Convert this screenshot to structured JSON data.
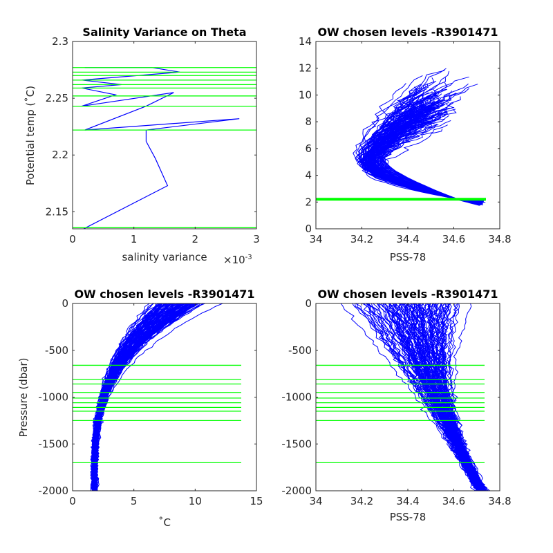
{
  "colors": {
    "profile": "#0000ff",
    "levels": "#00ff00",
    "axis": "#262626",
    "background": "#ffffff"
  },
  "chart_data": [
    {
      "type": "line",
      "title": "Salinity Variance on Theta",
      "xlabel": "salinity variance",
      "x_exponent_label": "×10",
      "x_exponent_power": "-3",
      "ylabel": "Potential temp (˚C)",
      "xlim": [
        0,
        3
      ],
      "ylim": [
        2.135,
        2.3
      ],
      "xticks": [
        0,
        1,
        2,
        3
      ],
      "yticks": [
        2.15,
        2.2,
        2.25,
        2.3
      ],
      "xtick_labels": [
        "0",
        "1",
        "2",
        "3"
      ],
      "ytick_labels": [
        "2.15",
        "2.2",
        "2.25",
        "2.3"
      ],
      "grid": false,
      "series": [
        {
          "x": [
            0.18,
            1.55,
            1.35,
            1.2,
            1.2,
            2.72,
            0.2,
            1.2,
            1.65,
            0.15,
            0.7,
            0.15,
            0.8,
            0.15,
            1.75,
            1.3,
            0.2
          ],
          "y": [
            2.135,
            2.173,
            2.197,
            2.212,
            2.222,
            2.232,
            2.222,
            2.243,
            2.255,
            2.243,
            2.253,
            2.259,
            2.262,
            2.266,
            2.273,
            2.277,
            2.277
          ]
        }
      ],
      "hlines": [
        2.222,
        2.243,
        2.252,
        2.259,
        2.262,
        2.266,
        2.27,
        2.273,
        2.277,
        2.136
      ]
    },
    {
      "type": "line",
      "title": "OW chosen levels -R3901471",
      "xlabel": "PSS-78",
      "ylabel": "",
      "xlim": [
        34,
        34.8
      ],
      "ylim": [
        0,
        14
      ],
      "xticks": [
        34,
        34.2,
        34.4,
        34.6,
        34.8
      ],
      "yticks": [
        0,
        2,
        4,
        6,
        8,
        10,
        12,
        14
      ],
      "xtick_labels": [
        "34",
        "34.2",
        "34.4",
        "34.6",
        "34.8"
      ],
      "ytick_labels": [
        "0",
        "2",
        "4",
        "6",
        "8",
        "10",
        "12",
        "14"
      ],
      "grid": false,
      "profile_family": "theta-salinity",
      "profile_count": 120,
      "hlines": [
        2.14,
        2.18,
        2.22,
        2.26,
        2.28
      ]
    },
    {
      "type": "line",
      "title": "OW chosen levels -R3901471",
      "xlabel": "˚C",
      "ylabel": "Pressure (dbar)",
      "xlim": [
        0,
        15
      ],
      "ylim": [
        -2000,
        0
      ],
      "xticks": [
        0,
        5,
        10,
        15
      ],
      "yticks": [
        -2000,
        -1500,
        -1000,
        -500,
        0
      ],
      "xtick_labels": [
        "0",
        "5",
        "10",
        "15"
      ],
      "ytick_labels": [
        "-2000",
        "-1500",
        "-1000",
        "-500",
        "0"
      ],
      "grid": false,
      "profile_family": "temperature-pressure",
      "profile_count": 120,
      "hlines": [
        -660,
        -810,
        -860,
        -950,
        -1010,
        -1060,
        -1110,
        -1150,
        -1250,
        -1700
      ]
    },
    {
      "type": "line",
      "title": "OW chosen levels -R3901471",
      "xlabel": "PSS-78",
      "ylabel": "",
      "xlim": [
        34,
        34.8
      ],
      "ylim": [
        -2000,
        0
      ],
      "xticks": [
        34,
        34.2,
        34.4,
        34.6,
        34.8
      ],
      "yticks": [
        -2000,
        -1500,
        -1000,
        -500,
        0
      ],
      "xtick_labels": [
        "34",
        "34.2",
        "34.4",
        "34.6",
        "34.8"
      ],
      "ytick_labels": [
        "-2000",
        "-1500",
        "-1000",
        "-500",
        "0"
      ],
      "grid": false,
      "profile_family": "salinity-pressure",
      "profile_count": 120,
      "hlines": [
        -660,
        -810,
        -860,
        -950,
        -1010,
        -1060,
        -1110,
        -1150,
        -1250,
        -1700
      ]
    }
  ]
}
